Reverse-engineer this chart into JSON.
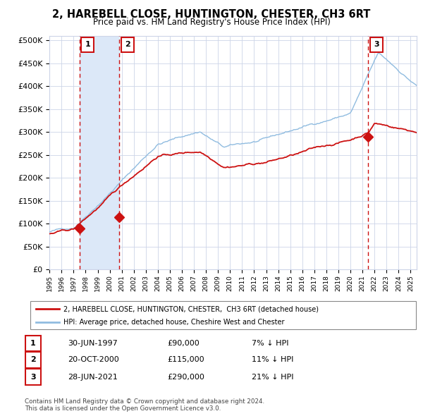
{
  "title": "2, HAREBELL CLOSE, HUNTINGTON, CHESTER, CH3 6RT",
  "subtitle": "Price paid vs. HM Land Registry's House Price Index (HPI)",
  "xlim": [
    1995.0,
    2025.5
  ],
  "ylim": [
    0,
    510000
  ],
  "yticks": [
    0,
    50000,
    100000,
    150000,
    200000,
    250000,
    300000,
    350000,
    400000,
    450000,
    500000
  ],
  "ytick_labels": [
    "£0",
    "£50K",
    "£100K",
    "£150K",
    "£200K",
    "£250K",
    "£300K",
    "£350K",
    "£400K",
    "£450K",
    "£500K"
  ],
  "purchase_dates": [
    1997.496,
    2000.804,
    2021.486
  ],
  "purchase_prices": [
    90000,
    115000,
    290000
  ],
  "purchase_labels": [
    "1",
    "2",
    "3"
  ],
  "legend_house_label": "2, HAREBELL CLOSE, HUNTINGTON, CHESTER,  CH3 6RT (detached house)",
  "legend_hpi_label": "HPI: Average price, detached house, Cheshire West and Chester",
  "table_rows": [
    [
      "1",
      "30-JUN-1997",
      "£90,000",
      "7% ↓ HPI"
    ],
    [
      "2",
      "20-OCT-2000",
      "£115,000",
      "11% ↓ HPI"
    ],
    [
      "3",
      "28-JUN-2021",
      "£290,000",
      "21% ↓ HPI"
    ]
  ],
  "footer": "Contains HM Land Registry data © Crown copyright and database right 2024.\nThis data is licensed under the Open Government Licence v3.0.",
  "chart_bg": "#ffffff",
  "grid_color": "#ccd4e8",
  "hpi_color": "#90bce0",
  "house_color": "#cc1111",
  "vline_color": "#cc1111",
  "highlight_bg": "#dce8f8",
  "xtick_years": [
    1995,
    1996,
    1997,
    1998,
    1999,
    2000,
    2001,
    2002,
    2003,
    2004,
    2005,
    2006,
    2007,
    2008,
    2009,
    2010,
    2011,
    2012,
    2013,
    2014,
    2015,
    2016,
    2017,
    2018,
    2019,
    2020,
    2021,
    2022,
    2023,
    2024,
    2025
  ]
}
